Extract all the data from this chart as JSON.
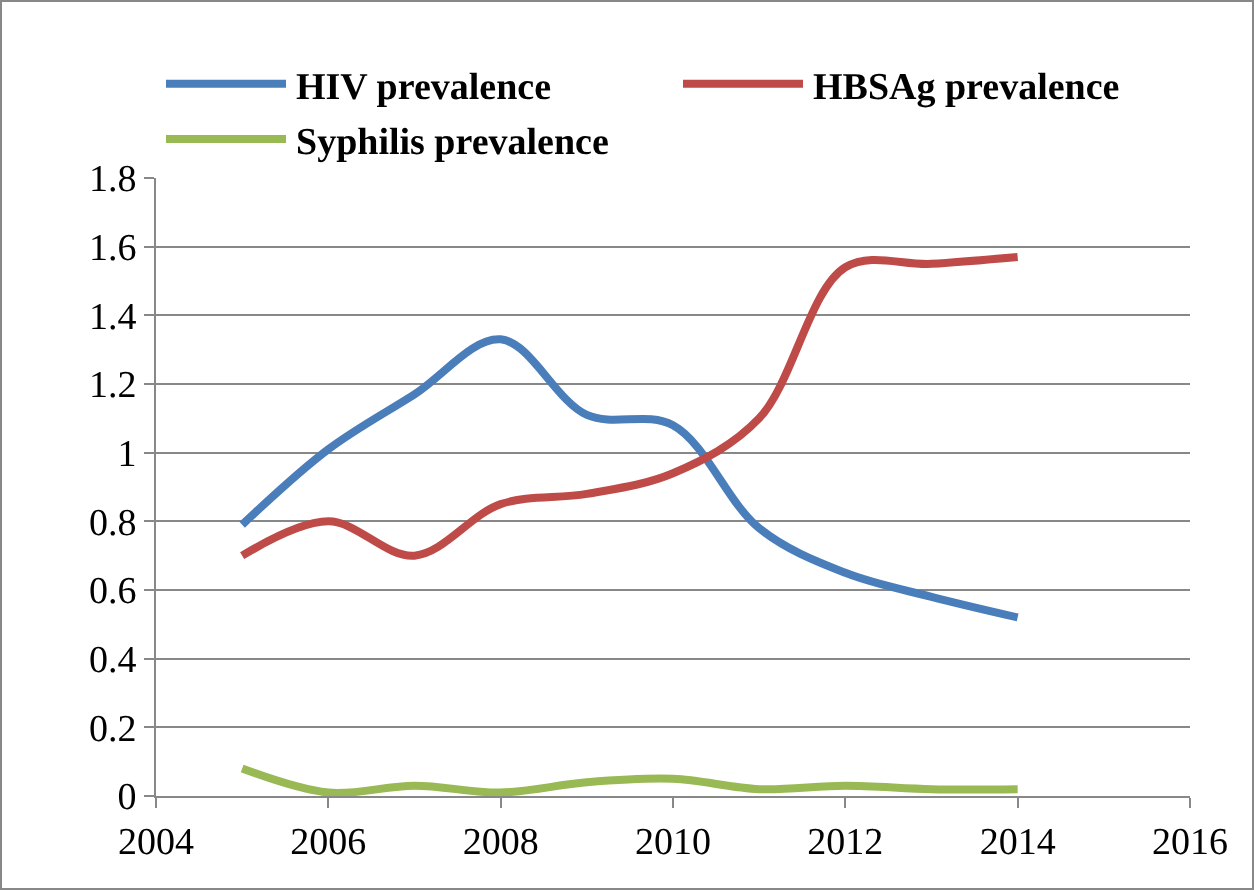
{
  "chart_data": {
    "type": "line",
    "x": [
      2005,
      2006,
      2007,
      2008,
      2009,
      2010,
      2011,
      2012,
      2013,
      2014
    ],
    "series": [
      {
        "name": "HIV prevalence",
        "color": "#4a7ebb",
        "values": [
          0.79,
          1.01,
          1.17,
          1.33,
          1.11,
          1.08,
          0.78,
          0.65,
          0.58,
          0.52
        ]
      },
      {
        "name": "HBSAg prevalence",
        "color": "#be4b48",
        "values": [
          0.7,
          0.8,
          0.7,
          0.85,
          0.88,
          0.94,
          1.1,
          1.54,
          1.55,
          1.57
        ]
      },
      {
        "name": "Syphilis prevalence",
        "color": "#98b954",
        "values": [
          0.08,
          0.01,
          0.03,
          0.01,
          0.04,
          0.05,
          0.02,
          0.03,
          0.02,
          0.02
        ]
      }
    ],
    "xlim": [
      2004,
      2016
    ],
    "xticks": [
      2004,
      2006,
      2008,
      2010,
      2012,
      2014,
      2016
    ],
    "ylim": [
      0,
      1.8
    ],
    "yticks": [
      0,
      0.2,
      0.4,
      0.6,
      0.8,
      1,
      1.2,
      1.4,
      1.6,
      1.8
    ],
    "grid": "y",
    "legend": "top",
    "marker": "none",
    "line_style": "solid"
  }
}
